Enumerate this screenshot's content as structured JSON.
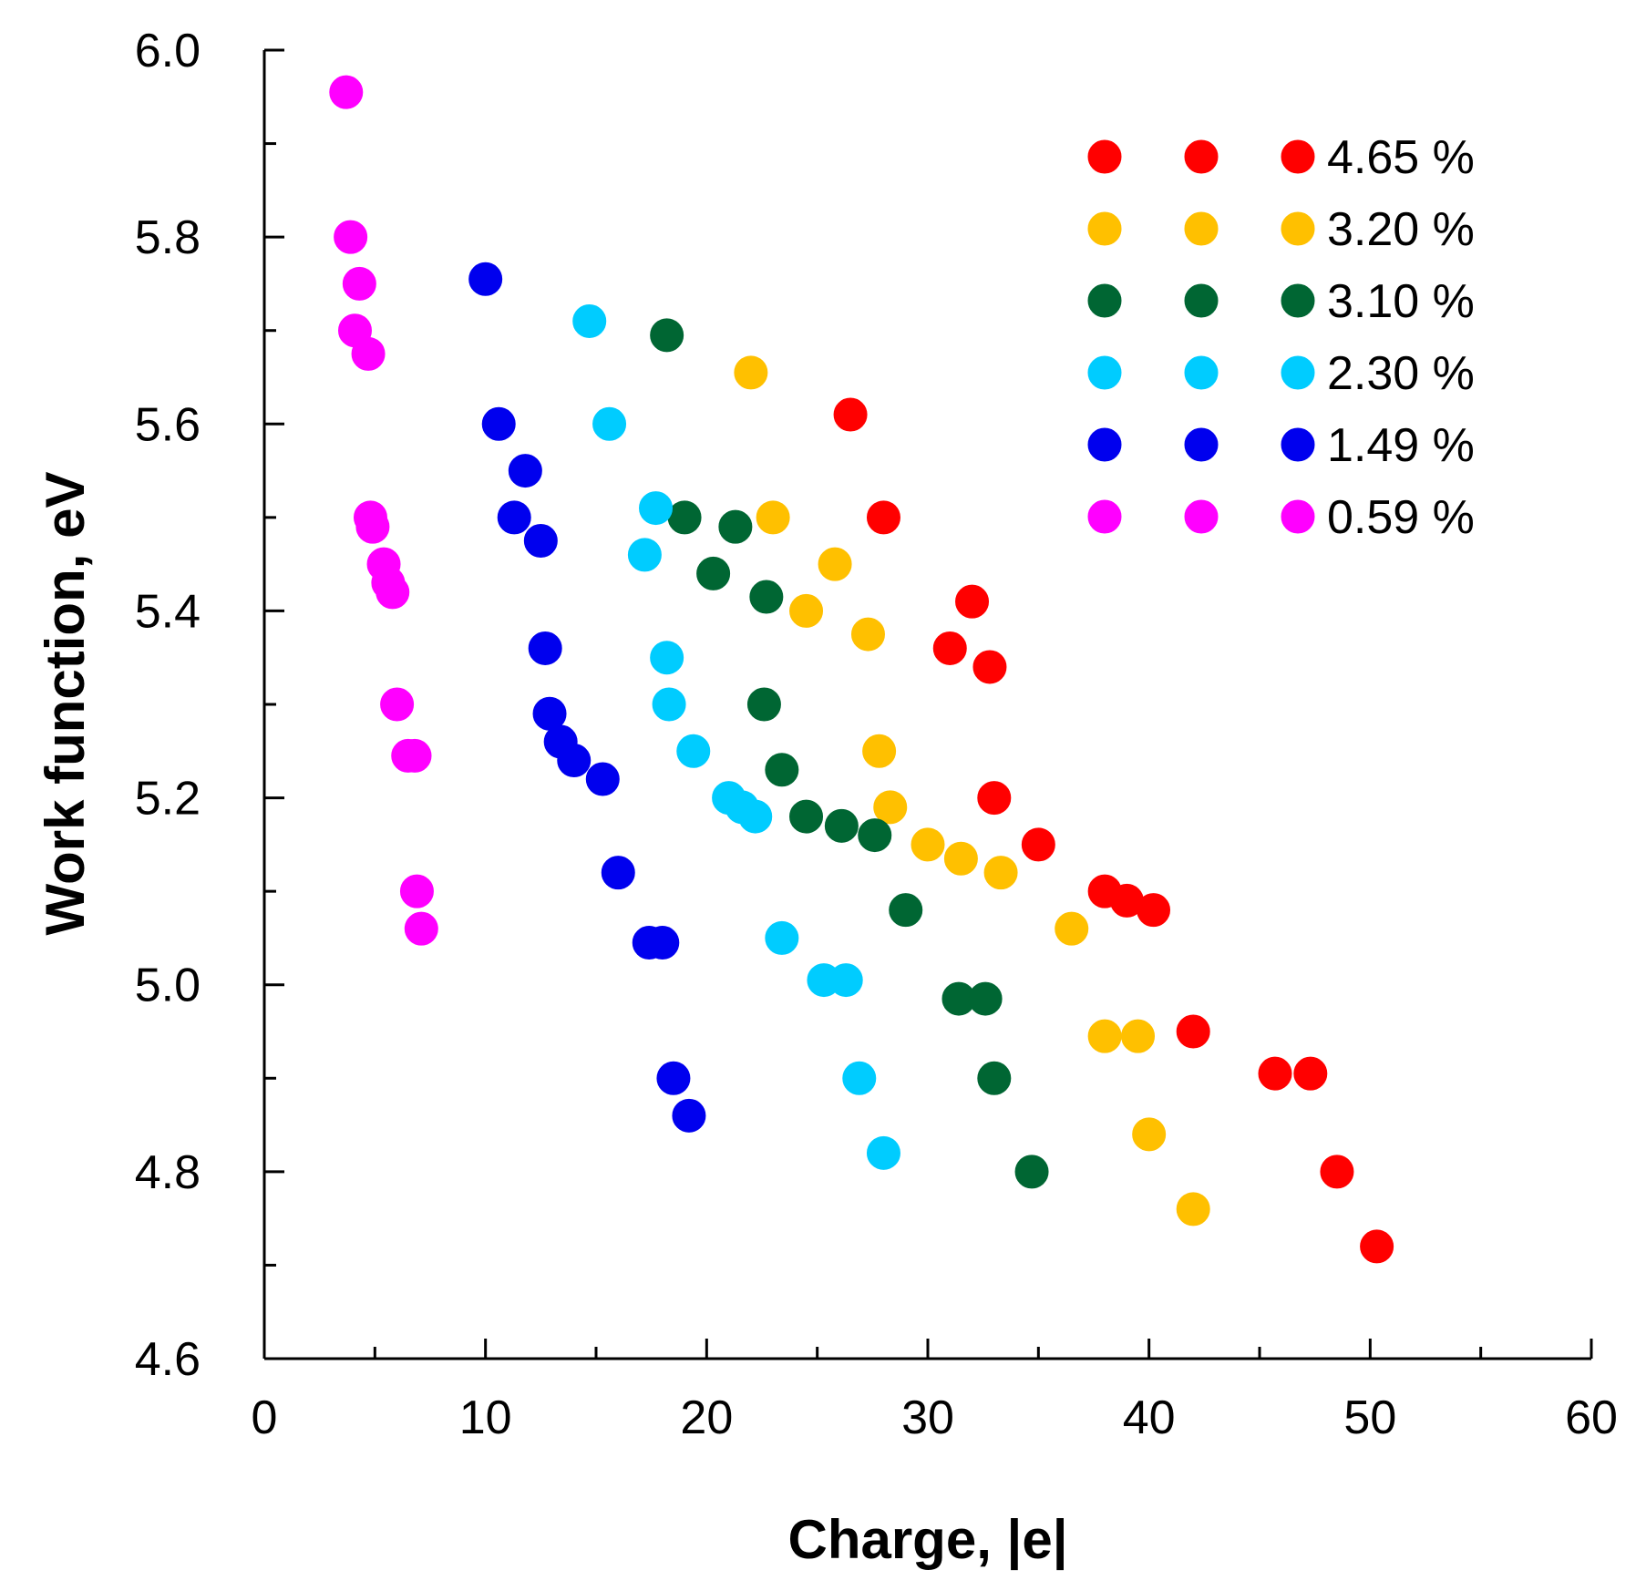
{
  "chart_data": {
    "type": "scatter",
    "title": "",
    "xlabel": "Charge, |e|",
    "ylabel": "Work function, eV",
    "xlim": [
      0,
      60
    ],
    "ylim": [
      4.6,
      6.0
    ],
    "xticks": [
      "0",
      "10",
      "20",
      "30",
      "40",
      "50",
      "60"
    ],
    "yticks": [
      "4.6",
      "4.8",
      "5.0",
      "5.2",
      "5.4",
      "5.6",
      "5.8",
      "6.0"
    ],
    "legend_position": "top-right",
    "grid": false,
    "series": [
      {
        "name": "4.65 %",
        "color": "#ff0000",
        "points": [
          [
            26.5,
            5.61
          ],
          [
            28.0,
            5.5
          ],
          [
            32.0,
            5.41
          ],
          [
            31.0,
            5.36
          ],
          [
            32.8,
            5.34
          ],
          [
            33.0,
            5.2
          ],
          [
            35.0,
            5.15
          ],
          [
            38.0,
            5.1
          ],
          [
            39.0,
            5.09
          ],
          [
            40.2,
            5.08
          ],
          [
            42.0,
            4.95
          ],
          [
            45.7,
            4.905
          ],
          [
            47.3,
            4.905
          ],
          [
            48.5,
            4.8
          ],
          [
            50.3,
            4.72
          ]
        ]
      },
      {
        "name": "3.20 %",
        "color": "#ffc000",
        "points": [
          [
            22.0,
            5.655
          ],
          [
            23.0,
            5.5
          ],
          [
            25.8,
            5.45
          ],
          [
            24.5,
            5.4
          ],
          [
            27.3,
            5.375
          ],
          [
            27.8,
            5.25
          ],
          [
            28.3,
            5.19
          ],
          [
            30.0,
            5.15
          ],
          [
            31.5,
            5.135
          ],
          [
            33.3,
            5.12
          ],
          [
            36.5,
            5.06
          ],
          [
            38.0,
            4.945
          ],
          [
            39.5,
            4.945
          ],
          [
            40.0,
            4.84
          ],
          [
            42.0,
            4.76
          ]
        ]
      },
      {
        "name": "3.10 %",
        "color": "#006633",
        "points": [
          [
            18.2,
            5.695
          ],
          [
            19.0,
            5.5
          ],
          [
            21.3,
            5.49
          ],
          [
            20.3,
            5.44
          ],
          [
            22.7,
            5.415
          ],
          [
            22.6,
            5.3
          ],
          [
            23.4,
            5.23
          ],
          [
            24.5,
            5.18
          ],
          [
            26.1,
            5.17
          ],
          [
            27.6,
            5.16
          ],
          [
            29.0,
            5.08
          ],
          [
            31.4,
            4.985
          ],
          [
            32.6,
            4.985
          ],
          [
            33.0,
            4.9
          ],
          [
            34.7,
            4.8
          ]
        ]
      },
      {
        "name": "2.30 %",
        "color": "#00ccff",
        "points": [
          [
            14.7,
            5.71
          ],
          [
            15.6,
            5.6
          ],
          [
            17.7,
            5.51
          ],
          [
            17.2,
            5.46
          ],
          [
            18.2,
            5.35
          ],
          [
            18.3,
            5.3
          ],
          [
            19.4,
            5.25
          ],
          [
            21.0,
            5.2
          ],
          [
            21.6,
            5.19
          ],
          [
            22.2,
            5.18
          ],
          [
            23.4,
            5.05
          ],
          [
            25.3,
            5.005
          ],
          [
            26.3,
            5.005
          ],
          [
            26.9,
            4.9
          ],
          [
            28.0,
            4.82
          ]
        ]
      },
      {
        "name": "1.49 %",
        "color": "#0000ee",
        "points": [
          [
            10.0,
            5.755
          ],
          [
            10.6,
            5.6
          ],
          [
            11.8,
            5.55
          ],
          [
            11.3,
            5.5
          ],
          [
            12.5,
            5.475
          ],
          [
            12.7,
            5.36
          ],
          [
            12.9,
            5.29
          ],
          [
            13.4,
            5.26
          ],
          [
            14.0,
            5.24
          ],
          [
            15.3,
            5.22
          ],
          [
            16.0,
            5.12
          ],
          [
            17.4,
            5.045
          ],
          [
            18.0,
            5.045
          ],
          [
            18.5,
            4.9
          ],
          [
            19.2,
            4.86
          ]
        ]
      },
      {
        "name": "0.59 %",
        "color": "#ff00ff",
        "points": [
          [
            3.7,
            5.955
          ],
          [
            3.9,
            5.8
          ],
          [
            4.3,
            5.75
          ],
          [
            4.1,
            5.7
          ],
          [
            4.7,
            5.675
          ],
          [
            4.8,
            5.5
          ],
          [
            4.9,
            5.49
          ],
          [
            5.4,
            5.45
          ],
          [
            5.6,
            5.43
          ],
          [
            5.8,
            5.42
          ],
          [
            6.0,
            5.3
          ],
          [
            6.5,
            5.245
          ],
          [
            6.8,
            5.245
          ],
          [
            6.9,
            5.1
          ],
          [
            7.1,
            5.06
          ]
        ]
      }
    ]
  }
}
